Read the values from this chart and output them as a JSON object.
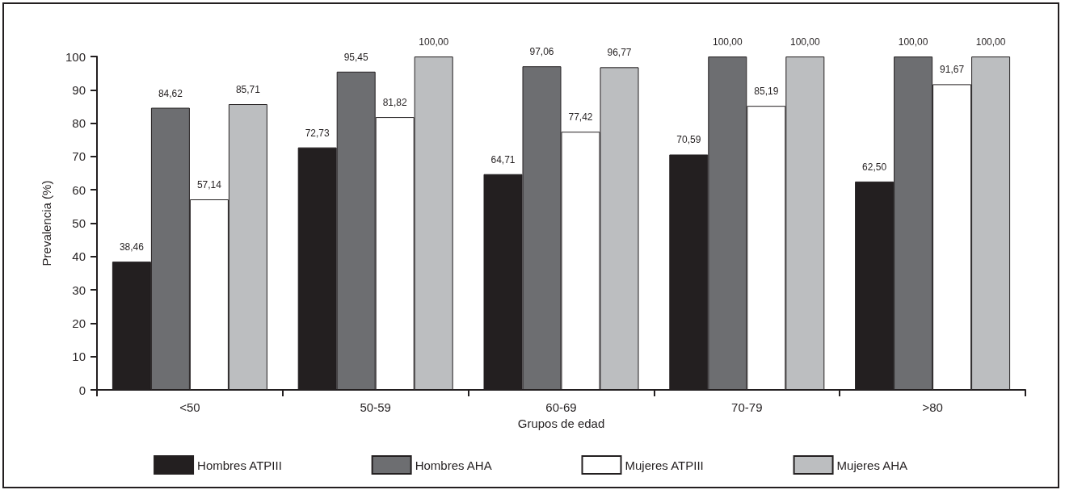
{
  "chart_data": {
    "type": "bar",
    "xlabel": "Grupos de edad",
    "ylabel": "Prevalencia (%)",
    "categories": [
      "<50",
      "50-59",
      "60-69",
      "70-79",
      ">80"
    ],
    "series": [
      {
        "name": "Hombres ATPIII",
        "color": "#231f20",
        "values": [
          38.46,
          72.73,
          64.71,
          70.59,
          62.5
        ],
        "value_labels": [
          "38,46",
          "72,73",
          "64,71",
          "70,59",
          "62,50"
        ]
      },
      {
        "name": "Hombres AHA",
        "color": "#6d6e71",
        "values": [
          84.62,
          95.45,
          97.06,
          100,
          100
        ],
        "value_labels": [
          "84,62",
          "95,45",
          "97,06",
          "100,00",
          "100,00"
        ]
      },
      {
        "name": "Mujeres ATPIII",
        "color": "#ffffff",
        "values": [
          57.14,
          81.82,
          77.42,
          85.19,
          91.67
        ],
        "value_labels": [
          "57,14",
          "81,82",
          "77,42",
          "85,19",
          "91,67"
        ]
      },
      {
        "name": "Mujeres AHA",
        "color": "#bcbec0",
        "values": [
          85.71,
          100,
          96.77,
          100,
          100
        ],
        "value_labels": [
          "85,71",
          "100,00",
          "96,77",
          "100,00",
          "100,00"
        ]
      }
    ],
    "ylim": [
      0,
      100
    ],
    "yticks": [
      0,
      10,
      20,
      30,
      40,
      50,
      60,
      70,
      80,
      90,
      100
    ],
    "grid": false,
    "legend": "bottom"
  }
}
